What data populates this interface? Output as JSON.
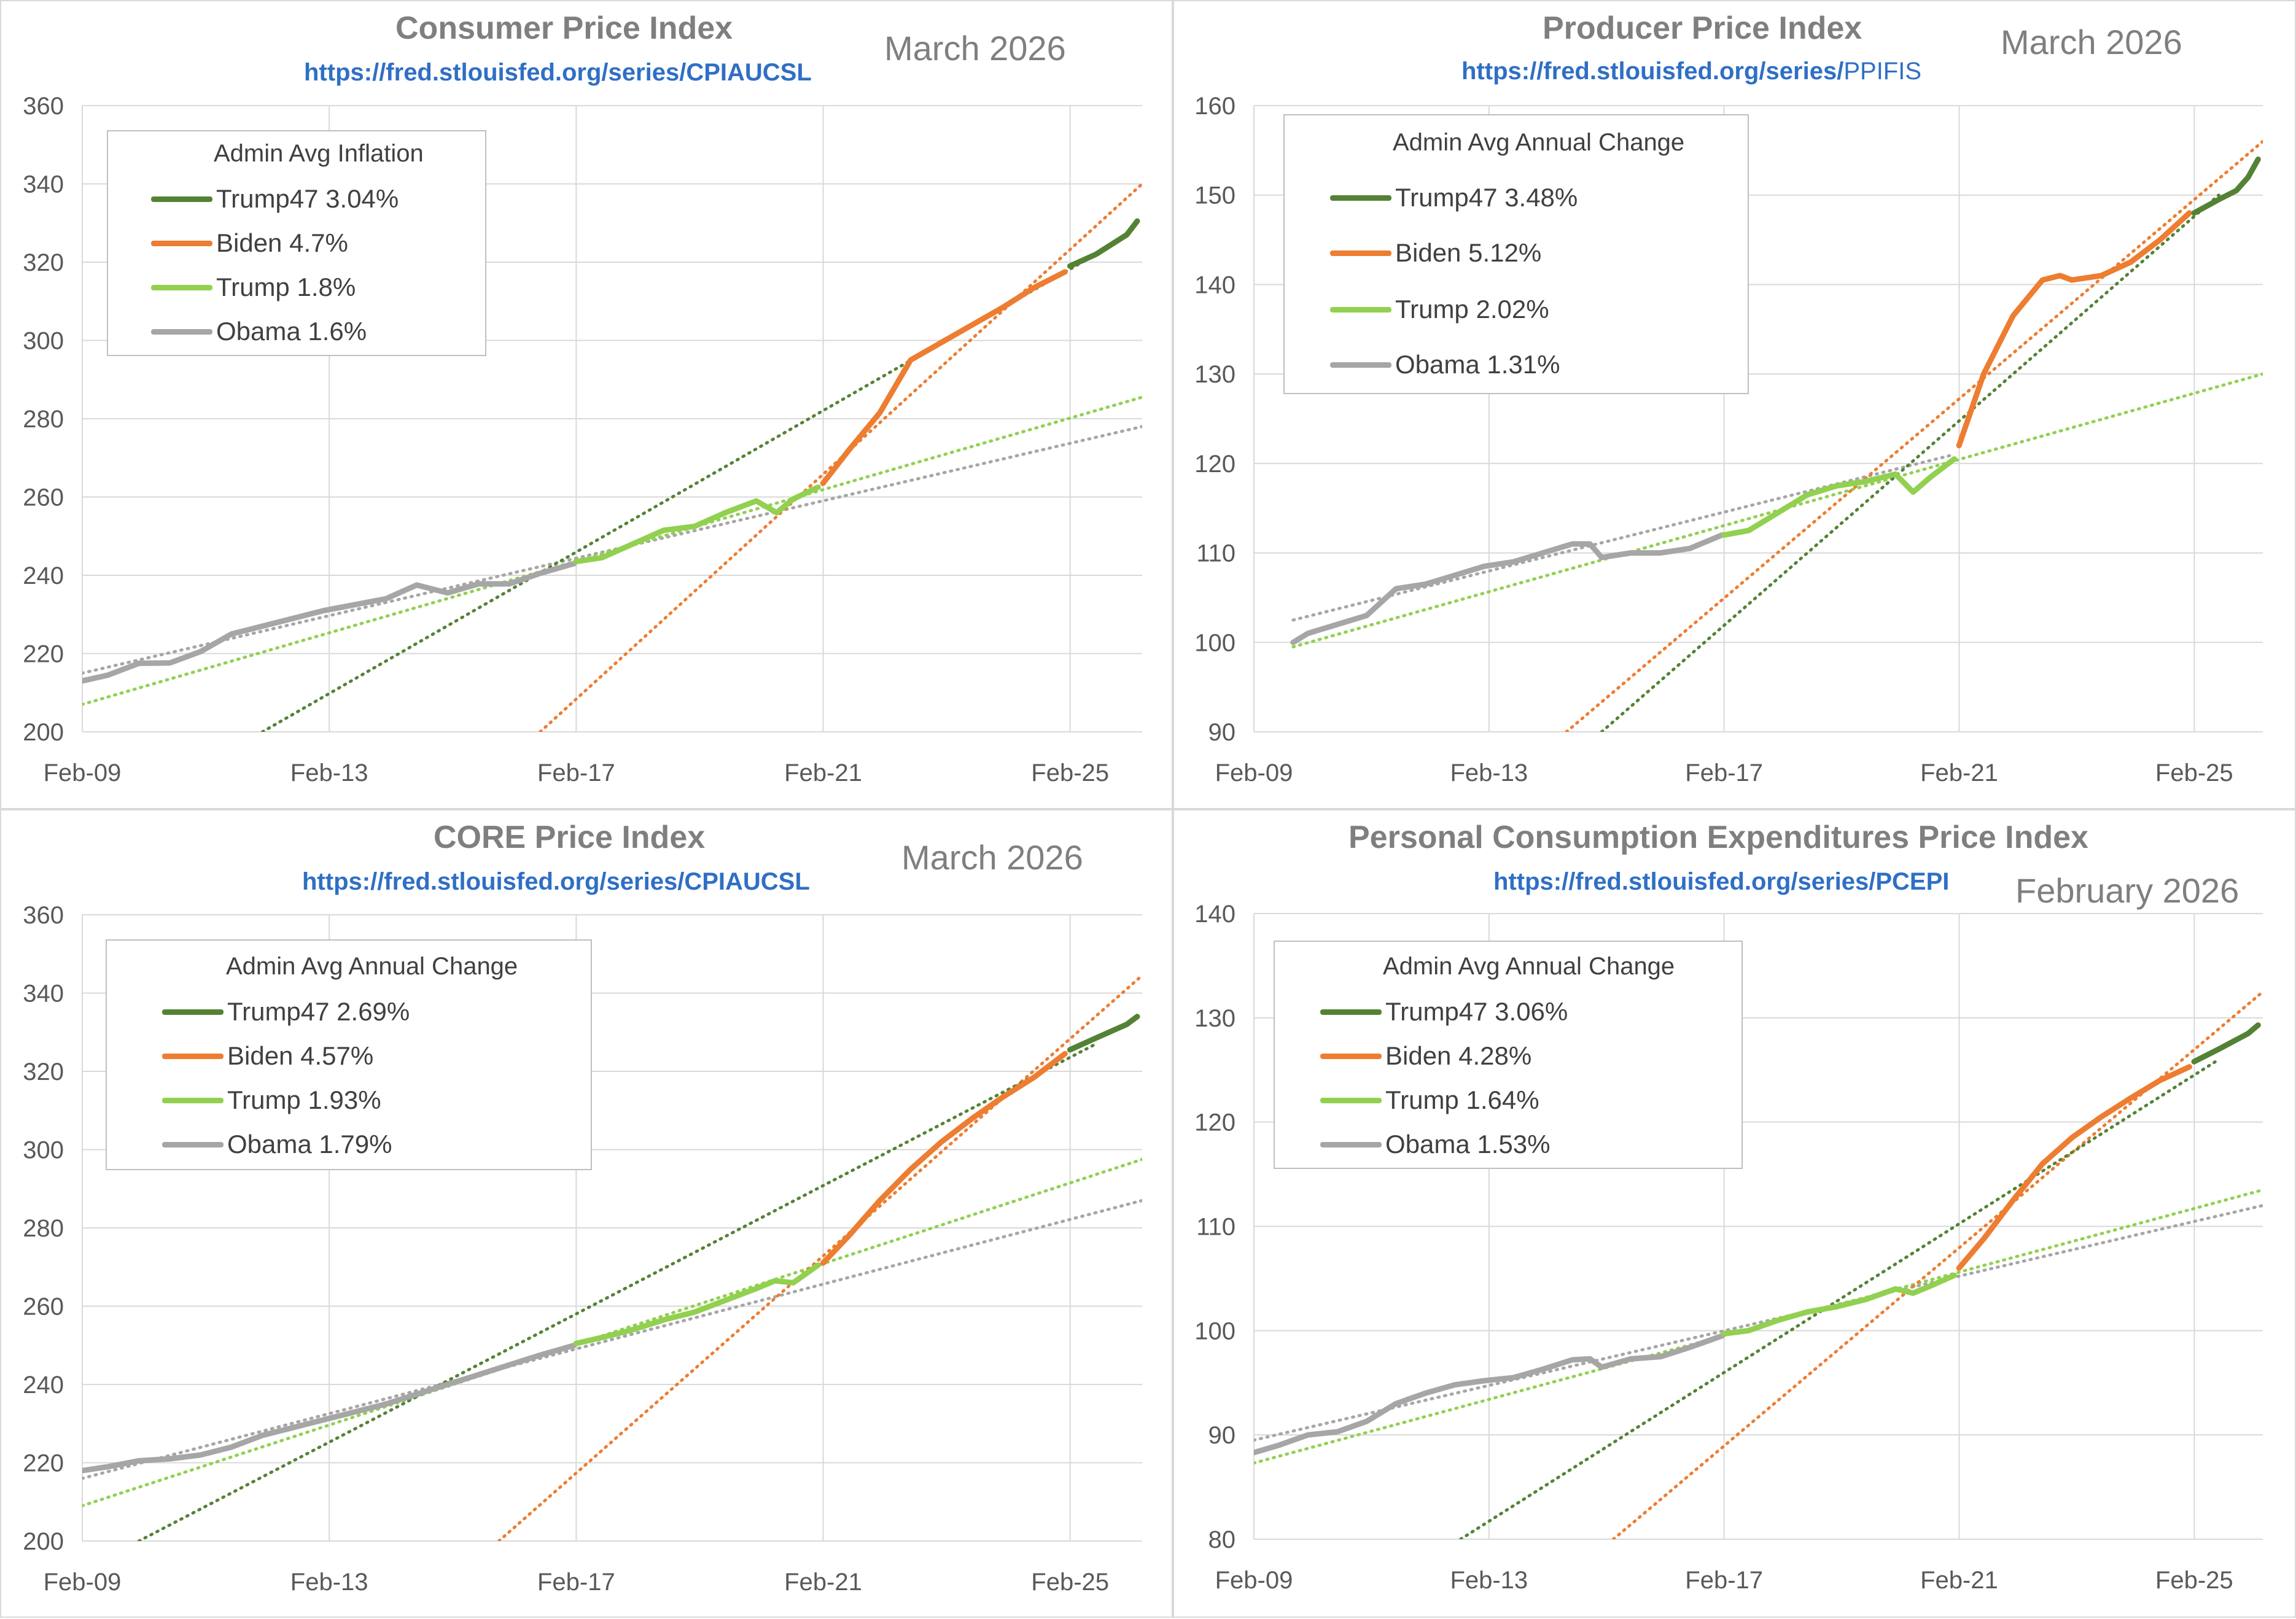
{
  "colors": {
    "trump47": "#548235",
    "biden": "#ed7d31",
    "trump": "#92d050",
    "obama": "#a6a6a6",
    "grid": "#d9d9d9",
    "text": "#595959"
  },
  "charts": [
    {
      "title": "Consumer Price Index",
      "url_prefix": "https://fred.stlouisfed.org/series/",
      "url_series": "CPIAUCSL",
      "date": "March 2026",
      "legend_title": "Admin Avg Inflation",
      "legend": [
        "Trump47 3.04%",
        "Biden 4.7%",
        "Trump 1.8%",
        "Obama 1.6%"
      ]
    },
    {
      "title": "Producer Price Index",
      "url_prefix": "https://fred.stlouisfed.org/series/",
      "url_series": "PPIFIS",
      "date": "March 2026",
      "legend_title": "Admin Avg Annual Change",
      "legend": [
        "Trump47 3.48%",
        "Biden 5.12%",
        "Trump 2.02%",
        "Obama 1.31%"
      ]
    },
    {
      "title": "CORE Price Index",
      "url_prefix": "https://fred.stlouisfed.org/series/",
      "url_series": "CPIAUCSL",
      "date": "March 2026",
      "legend_title": "Admin Avg Annual Change",
      "legend": [
        "Trump47 2.69%",
        "Biden 4.57%",
        "Trump 1.93%",
        "Obama 1.79%"
      ]
    },
    {
      "title": "Personal Consumption Expenditures Price Index",
      "url_prefix": "https://fred.stlouisfed.org/series/",
      "url_series": "PCEPI",
      "date": "February 2026",
      "legend_title": "Admin Avg Annual Change",
      "legend": [
        "Trump47 3.06%",
        "Biden 4.28%",
        "Trump 1.64%",
        "Obama 1.53%"
      ]
    }
  ],
  "chart_data": [
    {
      "type": "line",
      "title": "Consumer Price Index",
      "x_ticks": [
        "Feb-09",
        "Feb-13",
        "Feb-17",
        "Feb-21",
        "Feb-25"
      ],
      "x_tick_values": [
        2009.083,
        2013.083,
        2017.083,
        2021.083,
        2025.083
      ],
      "xlim": [
        2009.083,
        2026.25
      ],
      "ylim": [
        200,
        360
      ],
      "y_ticks": [
        200,
        220,
        240,
        260,
        280,
        300,
        320,
        340,
        360
      ],
      "series": [
        {
          "name": "Obama",
          "x": [
            2009.08,
            2009.5,
            2010.0,
            2010.5,
            2011.0,
            2011.5,
            2012.0,
            2012.5,
            2013.0,
            2013.5,
            2014.0,
            2014.5,
            2015.0,
            2015.5,
            2016.0,
            2016.5,
            2017.05
          ],
          "y": [
            213,
            214.5,
            217.5,
            217.6,
            220.5,
            225,
            227,
            229,
            231,
            232.5,
            234,
            237.5,
            235.5,
            237.8,
            237.8,
            240.5,
            243
          ]
        },
        {
          "name": "Trump",
          "x": [
            2017.08,
            2017.5,
            2018.0,
            2018.5,
            2019.0,
            2019.5,
            2020.0,
            2020.33,
            2020.6,
            2021.0
          ],
          "y": [
            243.5,
            244.5,
            248,
            251.5,
            252.5,
            256,
            259,
            256,
            259.5,
            262.5
          ]
        },
        {
          "name": "Biden",
          "x": [
            2021.08,
            2021.5,
            2022.0,
            2022.5,
            2023.0,
            2023.5,
            2024.0,
            2024.5,
            2025.0
          ],
          "y": [
            263.5,
            272,
            281.5,
            295,
            299.5,
            304,
            308.5,
            313.5,
            317.5
          ]
        },
        {
          "name": "Trump47",
          "x": [
            2025.08,
            2025.5,
            2026.0,
            2026.17
          ],
          "y": [
            319,
            322,
            327,
            330.5
          ]
        },
        {
          "name": "Obama trend",
          "dotted": true,
          "x": [
            2009.08,
            2026.25
          ],
          "y": [
            215,
            278
          ]
        },
        {
          "name": "Trump trend",
          "dotted": true,
          "x": [
            2009.08,
            2026.25
          ],
          "y": [
            207,
            285.5
          ]
        },
        {
          "name": "Biden trend",
          "dotted": true,
          "x": [
            2016.5,
            2026.25
          ],
          "y": [
            200,
            340
          ]
        },
        {
          "name": "Trump47 trend",
          "dotted": true,
          "x": [
            2012.0,
            2025.5
          ],
          "y": [
            200,
            322
          ]
        }
      ]
    },
    {
      "type": "line",
      "title": "Producer Price Index",
      "x_ticks": [
        "Feb-09",
        "Feb-13",
        "Feb-17",
        "Feb-21",
        "Feb-25"
      ],
      "x_tick_values": [
        2009.083,
        2013.083,
        2017.083,
        2021.083,
        2025.083
      ],
      "xlim": [
        2009.083,
        2026.25
      ],
      "ylim": [
        90,
        160
      ],
      "y_ticks": [
        90,
        100,
        110,
        120,
        130,
        140,
        150,
        160
      ],
      "series": [
        {
          "name": "Obama",
          "x": [
            2009.75,
            2010.0,
            2010.5,
            2011.0,
            2011.5,
            2012.0,
            2012.5,
            2013.0,
            2013.5,
            2014.0,
            2014.5,
            2014.8,
            2015.0,
            2015.5,
            2016.0,
            2016.5,
            2017.05
          ],
          "y": [
            100,
            101,
            102,
            103,
            106,
            106.5,
            107.5,
            108.5,
            109,
            110,
            111,
            111,
            109.5,
            110,
            110,
            110.5,
            112
          ]
        },
        {
          "name": "Trump",
          "x": [
            2017.08,
            2017.5,
            2018.0,
            2018.5,
            2019.0,
            2019.5,
            2020.0,
            2020.3,
            2020.6,
            2021.0
          ],
          "y": [
            112,
            112.5,
            114.5,
            116.5,
            117.5,
            118,
            118.8,
            116.8,
            118.5,
            120.5
          ]
        },
        {
          "name": "Biden",
          "x": [
            2021.08,
            2021.5,
            2022.0,
            2022.5,
            2022.8,
            2023.0,
            2023.5,
            2024.0,
            2024.5,
            2025.0
          ],
          "y": [
            122,
            130,
            136.5,
            140.5,
            141,
            140.5,
            141,
            142.5,
            145,
            148
          ]
        },
        {
          "name": "Trump47",
          "x": [
            2025.08,
            2025.5,
            2025.8,
            2026.0,
            2026.17
          ],
          "y": [
            148,
            149.5,
            150.5,
            152,
            154
          ]
        },
        {
          "name": "Obama trend",
          "dotted": true,
          "x": [
            2009.75,
            2021.0
          ],
          "y": [
            102.5,
            121
          ]
        },
        {
          "name": "Trump trend",
          "dotted": true,
          "x": [
            2009.75,
            2026.25
          ],
          "y": [
            99.5,
            130
          ]
        },
        {
          "name": "Biden trend",
          "dotted": true,
          "x": [
            2014.4,
            2026.25
          ],
          "y": [
            90,
            156
          ]
        },
        {
          "name": "Trump47 trend",
          "dotted": true,
          "x": [
            2015.0,
            2025.5
          ],
          "y": [
            90,
            150
          ]
        }
      ]
    },
    {
      "type": "line",
      "title": "CORE Price Index",
      "x_ticks": [
        "Feb-09",
        "Feb-13",
        "Feb-17",
        "Feb-21",
        "Feb-25"
      ],
      "x_tick_values": [
        2009.083,
        2013.083,
        2017.083,
        2021.083,
        2025.083
      ],
      "xlim": [
        2009.083,
        2026.25
      ],
      "ylim": [
        200,
        360
      ],
      "y_ticks": [
        200,
        220,
        240,
        260,
        280,
        300,
        320,
        340,
        360
      ],
      "series": [
        {
          "name": "Obama",
          "x": [
            2009.08,
            2009.5,
            2010.0,
            2010.5,
            2011.0,
            2011.5,
            2012.0,
            2012.5,
            2013.0,
            2013.5,
            2014.0,
            2014.5,
            2015.0,
            2015.5,
            2016.0,
            2016.5,
            2017.05
          ],
          "y": [
            218,
            219,
            220.5,
            221,
            222,
            224,
            227,
            229,
            231,
            233,
            235,
            237.5,
            240,
            242.5,
            245,
            247.5,
            250
          ]
        },
        {
          "name": "Trump",
          "x": [
            2017.08,
            2017.5,
            2018.0,
            2018.5,
            2019.0,
            2019.5,
            2020.0,
            2020.3,
            2020.6,
            2021.0
          ],
          "y": [
            250.5,
            252,
            254,
            256.5,
            258.5,
            261.5,
            264.5,
            266.5,
            266,
            270.5
          ]
        },
        {
          "name": "Biden",
          "x": [
            2021.08,
            2021.5,
            2022.0,
            2022.5,
            2023.0,
            2023.5,
            2024.0,
            2024.5,
            2025.0
          ],
          "y": [
            271,
            278,
            287,
            295,
            302,
            308,
            313.5,
            318.5,
            324.5
          ]
        },
        {
          "name": "Trump47",
          "x": [
            2025.08,
            2025.5,
            2026.0,
            2026.17
          ],
          "y": [
            325.5,
            328.5,
            332,
            334
          ]
        },
        {
          "name": "Obama trend",
          "dotted": true,
          "x": [
            2009.08,
            2026.25
          ],
          "y": [
            216,
            287
          ]
        },
        {
          "name": "Trump trend",
          "dotted": true,
          "x": [
            2009.08,
            2026.25
          ],
          "y": [
            209,
            297.5
          ]
        },
        {
          "name": "Biden trend",
          "dotted": true,
          "x": [
            2015.83,
            2026.25
          ],
          "y": [
            200,
            344.5
          ]
        },
        {
          "name": "Trump47 trend",
          "dotted": true,
          "x": [
            2010.0,
            2025.5
          ],
          "y": [
            200,
            327
          ]
        }
      ]
    },
    {
      "type": "line",
      "title": "Personal Consumption Expenditures Price Index",
      "x_ticks": [
        "Feb-09",
        "Feb-13",
        "Feb-17",
        "Feb-21",
        "Feb-25"
      ],
      "x_tick_values": [
        2009.083,
        2013.083,
        2017.083,
        2021.083,
        2025.083
      ],
      "xlim": [
        2009.083,
        2026.25
      ],
      "ylim": [
        80,
        140
      ],
      "y_ticks": [
        80,
        90,
        100,
        110,
        120,
        130,
        140
      ],
      "series": [
        {
          "name": "Obama",
          "x": [
            2009.08,
            2009.5,
            2010.0,
            2010.5,
            2011.0,
            2011.5,
            2012.0,
            2012.5,
            2013.0,
            2013.5,
            2014.0,
            2014.5,
            2014.8,
            2015.0,
            2015.5,
            2016.0,
            2016.5,
            2017.05
          ],
          "y": [
            88.3,
            89,
            90,
            90.3,
            91.3,
            93,
            94,
            94.8,
            95.2,
            95.5,
            96.3,
            97.2,
            97.3,
            96.5,
            97.3,
            97.5,
            98.4,
            99.5
          ]
        },
        {
          "name": "Trump",
          "x": [
            2017.08,
            2017.5,
            2018.0,
            2018.5,
            2019.0,
            2019.5,
            2020.0,
            2020.3,
            2020.6,
            2021.0
          ],
          "y": [
            99.7,
            100,
            101,
            101.8,
            102.3,
            103,
            104,
            103.6,
            104.3,
            105.3
          ]
        },
        {
          "name": "Biden",
          "x": [
            2021.08,
            2021.5,
            2022.0,
            2022.5,
            2023.0,
            2023.5,
            2024.0,
            2024.5,
            2025.0
          ],
          "y": [
            106,
            108.8,
            112.5,
            116,
            118.5,
            120.5,
            122.3,
            124,
            125.3
          ]
        },
        {
          "name": "Trump47",
          "x": [
            2025.08,
            2025.5,
            2026.0,
            2026.17
          ],
          "y": [
            125.8,
            127,
            128.5,
            129.3
          ]
        },
        {
          "name": "Obama trend",
          "dotted": true,
          "x": [
            2009.08,
            2026.25
          ],
          "y": [
            89.5,
            112
          ]
        },
        {
          "name": "Trump trend",
          "dotted": true,
          "x": [
            2009.08,
            2026.25
          ],
          "y": [
            87.3,
            113.5
          ]
        },
        {
          "name": "Biden trend",
          "dotted": true,
          "x": [
            2015.2,
            2026.25
          ],
          "y": [
            80,
            132.5
          ]
        },
        {
          "name": "Trump47 trend",
          "dotted": true,
          "x": [
            2012.6,
            2025.5
          ],
          "y": [
            80,
            126
          ]
        }
      ]
    }
  ]
}
